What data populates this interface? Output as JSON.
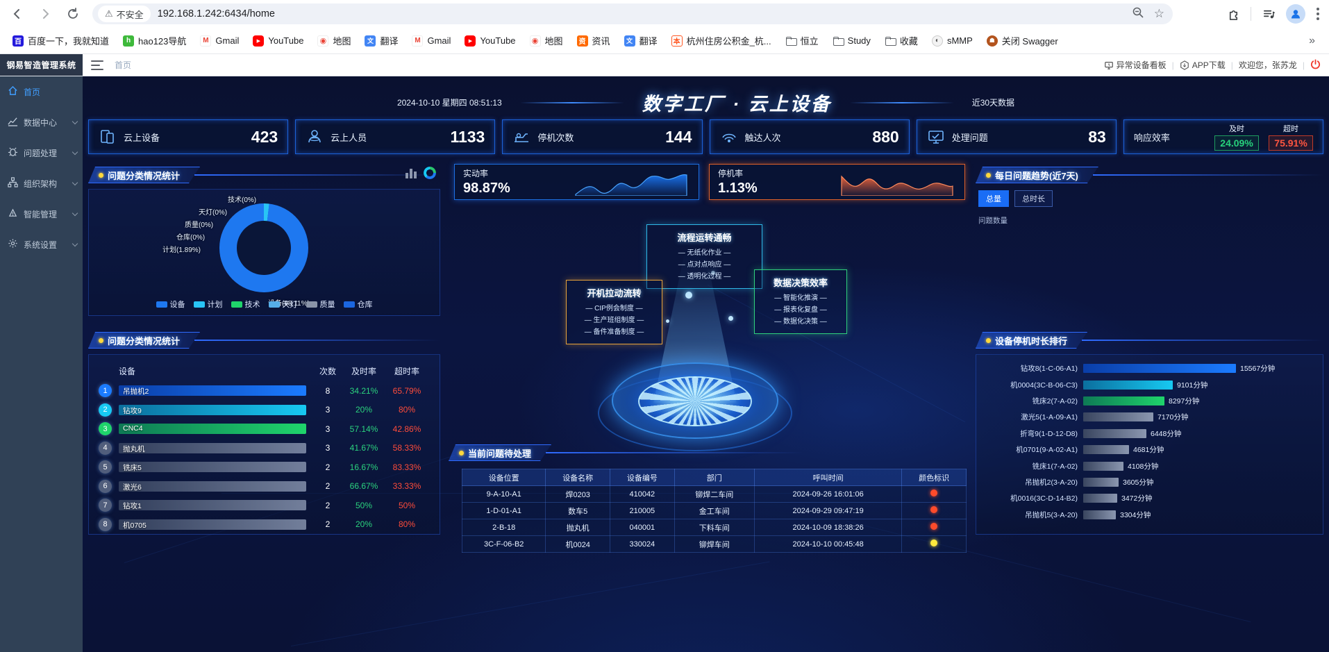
{
  "browser": {
    "security_label": "不安全",
    "url": "192.168.1.242:6434/home",
    "overflow_chevron": "»",
    "bookmarks": [
      {
        "label": "百度一下，我就知道",
        "icon": "baidu"
      },
      {
        "label": "hao123导航",
        "icon": "hao"
      },
      {
        "label": "Gmail",
        "icon": "gmail"
      },
      {
        "label": "YouTube",
        "icon": "youtube"
      },
      {
        "label": "地图",
        "icon": "maps"
      },
      {
        "label": "翻译",
        "icon": "translate"
      },
      {
        "label": "Gmail",
        "icon": "gmail"
      },
      {
        "label": "YouTube",
        "icon": "youtube"
      },
      {
        "label": "地图",
        "icon": "maps"
      },
      {
        "label": "资讯",
        "icon": "news"
      },
      {
        "label": "翻译",
        "icon": "translate"
      },
      {
        "label": "杭州住房公积金_杭...",
        "icon": "fund"
      },
      {
        "label": "恒立",
        "icon": "folder"
      },
      {
        "label": "Study",
        "icon": "folder"
      },
      {
        "label": "收藏",
        "icon": "folder"
      },
      {
        "label": "sMMP",
        "icon": "globe"
      },
      {
        "label": "关闭 Swagger",
        "icon": "swagger"
      }
    ]
  },
  "app_header": {
    "brand": "钢易智造管理系统",
    "breadcrumb": "首页",
    "toolbar": {
      "board": "异常设备看板",
      "app_download": "APP下载",
      "welcome": "欢迎您，张苏龙"
    }
  },
  "sidebar": {
    "items": [
      {
        "label": "首页",
        "icon": "home",
        "active": true,
        "expandable": false
      },
      {
        "label": "数据中心",
        "icon": "chart",
        "active": false,
        "expandable": true
      },
      {
        "label": "问题处理",
        "icon": "bug",
        "active": false,
        "expandable": true
      },
      {
        "label": "组织架构",
        "icon": "org",
        "active": false,
        "expandable": true
      },
      {
        "label": "智能管理",
        "icon": "alarm",
        "active": false,
        "expandable": true
      },
      {
        "label": "系统设置",
        "icon": "gear",
        "active": false,
        "expandable": true
      }
    ]
  },
  "dashboard": {
    "datetime": "2024-10-10 星期四 08:51:13",
    "title": "数字工厂 · 云上设备",
    "range_note": "近30天数据",
    "kpis": [
      {
        "label": "云上设备",
        "value": "423",
        "icon": "device"
      },
      {
        "label": "云上人员",
        "value": "1133",
        "icon": "person"
      },
      {
        "label": "停机次数",
        "value": "144",
        "icon": "machine"
      },
      {
        "label": "触达人次",
        "value": "880",
        "icon": "touch"
      },
      {
        "label": "处理问题",
        "value": "83",
        "icon": "monitor"
      }
    ],
    "response": {
      "label": "响应效率",
      "ontime_label": "及时",
      "ontime": "24.09%",
      "overtime_label": "超时",
      "overtime": "75.91%"
    },
    "category_panel": {
      "title": "问题分类情况统计",
      "chart_data": {
        "type": "pie",
        "slices": [
          {
            "name": "设备",
            "pct": 98.11,
            "label": "设备(98.11%)",
            "color": "#1e78f0"
          },
          {
            "name": "计划",
            "pct": 1.89,
            "label": "计划(1.89%)",
            "color": "#29c4f5"
          },
          {
            "name": "技术",
            "pct": 0,
            "label": "技术(0%)",
            "color": "#1fd46b"
          },
          {
            "name": "天灯",
            "pct": 0,
            "label": "天灯(0%)",
            "color": "#56aee8"
          },
          {
            "name": "质量",
            "pct": 0,
            "label": "质量(0%)",
            "color": "#8a94a8"
          },
          {
            "name": "仓库",
            "pct": 0,
            "label": "仓库(0%)",
            "color": "#1b66e0"
          }
        ]
      }
    },
    "rate_cards": [
      {
        "label": "实动率",
        "value": "98.87%",
        "theme": "blue"
      },
      {
        "label": "停机率",
        "value": "1.13%",
        "theme": "orange"
      }
    ],
    "flow_boxes": [
      {
        "title": "流程运转通畅",
        "items": [
          "— 无纸化作业 —",
          "— 点对点响应 —",
          "— 透明化过程 —"
        ],
        "theme": "cyan"
      },
      {
        "title": "开机拉动流转",
        "items": [
          "— CIP例会制度 —",
          "— 生产班组制度 —",
          "— 备件准备制度 —"
        ],
        "theme": "orange"
      },
      {
        "title": "数据决策效率",
        "items": [
          "— 智能化推演 —",
          "— 报表化复盘 —",
          "— 数据化决策 —"
        ],
        "theme": "green"
      }
    ],
    "rank_panel": {
      "title": "问题分类情况统计",
      "headers": {
        "device": "设备",
        "count": "次数",
        "ontime": "及时率",
        "overtime": "超时率"
      },
      "rows": [
        {
          "rank": 1,
          "name": "吊抛机2",
          "count": 8,
          "ontime": "34.21%",
          "overtime": "65.79%",
          "theme": "blue"
        },
        {
          "rank": 2,
          "name": "钻攻9",
          "count": 3,
          "ontime": "20%",
          "overtime": "80%",
          "theme": "cyan"
        },
        {
          "rank": 3,
          "name": "CNC4",
          "count": 3,
          "ontime": "57.14%",
          "overtime": "42.86%",
          "theme": "green"
        },
        {
          "rank": 4,
          "name": "抛丸机",
          "count": 3,
          "ontime": "41.67%",
          "overtime": "58.33%",
          "theme": "gray"
        },
        {
          "rank": 5,
          "name": "铣床5",
          "count": 2,
          "ontime": "16.67%",
          "overtime": "83.33%",
          "theme": "gray"
        },
        {
          "rank": 6,
          "name": "激光6",
          "count": 2,
          "ontime": "66.67%",
          "overtime": "33.33%",
          "theme": "gray"
        },
        {
          "rank": 7,
          "name": "钻攻1",
          "count": 2,
          "ontime": "50%",
          "overtime": "50%",
          "theme": "gray"
        },
        {
          "rank": 8,
          "name": "机0705",
          "count": 2,
          "ontime": "20%",
          "overtime": "80%",
          "theme": "gray"
        }
      ]
    },
    "pending_panel": {
      "title": "当前问题待处理",
      "columns": [
        "设备位置",
        "设备名称",
        "设备编号",
        "部门",
        "呼叫时间",
        "颜色标识"
      ],
      "rows": [
        {
          "cells": [
            "9-A-10-A1",
            "焊0203",
            "410042",
            "铆焊二车间",
            "2024-09-26 16:01:06"
          ],
          "dot": "red"
        },
        {
          "cells": [
            "1-D-01-A1",
            "数车5",
            "210005",
            "金工车间",
            "2024-09-29 09:47:19"
          ],
          "dot": "red"
        },
        {
          "cells": [
            "2-B-18",
            "抛丸机",
            "040001",
            "下料车间",
            "2024-10-09 18:38:26"
          ],
          "dot": "red"
        },
        {
          "cells": [
            "3C-F-06-B2",
            "机0024",
            "330024",
            "铆焊车间",
            "2024-10-10 00:45:48"
          ],
          "dot": "yellow"
        }
      ]
    },
    "trend_panel": {
      "title": "每日问题趋势(近7天)",
      "tabs": [
        "总量",
        "总时长"
      ],
      "active_tab": 0,
      "ylabel": "问题数量"
    },
    "downtime_panel": {
      "title": "设备停机时长排行",
      "chart_data": {
        "type": "bar",
        "unit": "分钟",
        "max": 15567,
        "bars": [
          {
            "name": "钻攻8(1-C-06-A1)",
            "value": 15567,
            "label": "15567分钟",
            "theme": "blue"
          },
          {
            "name": "机0004(3C-B-06-C3)",
            "value": 9101,
            "label": "9101分钟",
            "theme": "cyan"
          },
          {
            "name": "铣床2(7-A-02)",
            "value": 8297,
            "label": "8297分钟",
            "theme": "green"
          },
          {
            "name": "激光5(1-A-09-A1)",
            "value": 7170,
            "label": "7170分钟",
            "theme": "gray"
          },
          {
            "name": "折弯9(1-D-12-D8)",
            "value": 6448,
            "label": "6448分钟",
            "theme": "gray"
          },
          {
            "name": "机0701(9-A-02-A1)",
            "value": 4681,
            "label": "4681分钟",
            "theme": "gray"
          },
          {
            "name": "铣床1(7-A-02)",
            "value": 4108,
            "label": "4108分钟",
            "theme": "gray"
          },
          {
            "name": "吊抛机2(3-A-20)",
            "value": 3605,
            "label": "3605分钟",
            "theme": "gray"
          },
          {
            "name": "机0016(3C-D-14-B2)",
            "value": 3472,
            "label": "3472分钟",
            "theme": "gray"
          },
          {
            "name": "吊抛机5(3-A-20)",
            "value": 3304,
            "label": "3304分钟",
            "theme": "gray"
          }
        ]
      }
    }
  }
}
